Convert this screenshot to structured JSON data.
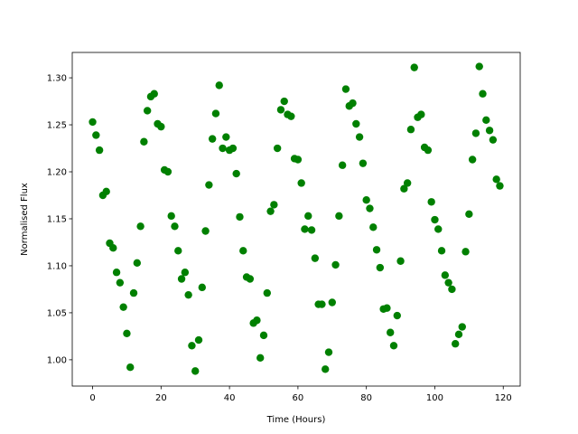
{
  "chart_data": {
    "type": "scatter",
    "x_label": "Time (Hours)",
    "y_label": "Normalised Flux",
    "color": "#008000",
    "x": [
      0,
      1,
      2,
      3,
      4,
      5,
      6,
      7,
      8,
      9,
      10,
      11,
      12,
      13,
      14,
      15,
      16,
      17,
      18,
      19,
      20,
      21,
      22,
      23,
      24,
      25,
      26,
      27,
      28,
      29,
      30,
      31,
      32,
      33,
      34,
      35,
      36,
      37,
      38,
      39,
      40,
      41,
      42,
      43,
      44,
      45,
      46,
      47,
      48,
      49,
      50,
      51,
      52,
      53,
      54,
      55,
      56,
      57,
      58,
      59,
      60,
      61,
      62,
      63,
      64,
      65,
      66,
      67,
      68,
      69,
      70,
      71,
      72,
      73,
      74,
      75,
      76,
      77,
      78,
      79,
      80,
      81,
      82,
      83,
      84,
      85,
      86,
      87,
      88,
      89,
      90,
      91,
      92,
      93,
      94,
      95,
      96,
      97,
      98,
      99,
      100,
      101,
      102,
      103,
      104,
      105,
      106,
      107,
      108,
      109,
      110,
      111,
      112,
      113,
      114,
      115,
      116,
      117,
      118,
      119
    ],
    "values": [
      1.253,
      1.239,
      1.223,
      1.175,
      1.179,
      1.124,
      1.119,
      1.093,
      1.082,
      1.056,
      1.028,
      0.992,
      1.071,
      1.103,
      1.142,
      1.232,
      1.265,
      1.28,
      1.283,
      1.251,
      1.248,
      1.202,
      1.2,
      1.153,
      1.142,
      1.116,
      1.086,
      1.093,
      1.069,
      1.015,
      0.988,
      1.021,
      1.077,
      1.137,
      1.186,
      1.235,
      1.262,
      1.292,
      1.225,
      1.237,
      1.223,
      1.225,
      1.198,
      1.152,
      1.116,
      1.088,
      1.086,
      1.039,
      1.042,
      1.002,
      1.026,
      1.071,
      1.158,
      1.165,
      1.225,
      1.266,
      1.275,
      1.261,
      1.259,
      1.214,
      1.213,
      1.188,
      1.139,
      1.153,
      1.138,
      1.108,
      1.059,
      1.059,
      0.99,
      1.008,
      1.061,
      1.101,
      1.153,
      1.207,
      1.288,
      1.27,
      1.273,
      1.251,
      1.237,
      1.209,
      1.17,
      1.161,
      1.141,
      1.117,
      1.098,
      1.054,
      1.055,
      1.029,
      1.015,
      1.047,
      1.105,
      1.182,
      1.188,
      1.245,
      1.311,
      1.258,
      1.261,
      1.226,
      1.223,
      1.168,
      1.149,
      1.139,
      1.116,
      1.09,
      1.082,
      1.075,
      1.017,
      1.027,
      1.035,
      1.115,
      1.155,
      1.213,
      1.241,
      1.312,
      1.283,
      1.255,
      1.244,
      1.234,
      1.192,
      1.185
    ],
    "xlim": [
      -5.95,
      124.95
    ],
    "xticks": [
      0,
      20,
      40,
      60,
      80,
      100,
      120
    ],
    "ylim": [
      0.972,
      1.327
    ],
    "yticks": [
      {
        "value": 1.0,
        "label": "1.00"
      },
      {
        "value": 1.05,
        "label": "1.05"
      },
      {
        "value": 1.1,
        "label": "1.10"
      },
      {
        "value": 1.15,
        "label": "1.15"
      },
      {
        "value": 1.2,
        "label": "1.20"
      },
      {
        "value": 1.25,
        "label": "1.25"
      },
      {
        "value": 1.3,
        "label": "1.30"
      }
    ],
    "grid": false
  }
}
